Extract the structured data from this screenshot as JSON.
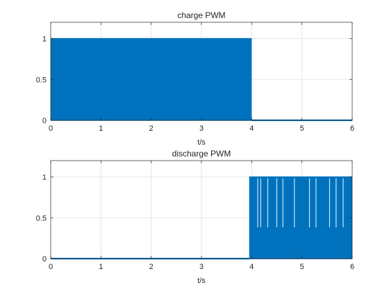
{
  "chart_data": [
    {
      "type": "line",
      "title": "charge PWM",
      "xlabel": "t/s",
      "ylabel": "",
      "xlim": [
        0,
        6
      ],
      "ylim": [
        0,
        1.2
      ],
      "x_ticks": [
        "0",
        "1",
        "2",
        "3",
        "4",
        "5",
        "6"
      ],
      "y_ticks": [
        "0",
        "0.5",
        "1"
      ],
      "grid": true,
      "series": [
        {
          "color": "#0072BD",
          "segments": [
            {
              "kind": "pwm_band",
              "x_start": 0,
              "x_end": 4,
              "low": 0,
              "high": 1
            },
            {
              "kind": "constant",
              "x_start": 4,
              "x_end": 6,
              "value": 0
            }
          ]
        }
      ]
    },
    {
      "type": "line",
      "title": "discharge PWM",
      "xlabel": "t/s",
      "ylabel": "",
      "xlim": [
        0,
        6
      ],
      "ylim": [
        0,
        1.2
      ],
      "x_ticks": [
        "0",
        "1",
        "2",
        "3",
        "4",
        "5",
        "6"
      ],
      "y_ticks": [
        "0",
        "0.5",
        "1"
      ],
      "grid": true,
      "series": [
        {
          "color": "#0072BD",
          "segments": [
            {
              "kind": "constant",
              "x_start": 0,
              "x_end": 3.95,
              "value": 0
            },
            {
              "kind": "pwm_band",
              "x_start": 3.95,
              "x_end": 6,
              "low": 0,
              "high": 1
            }
          ],
          "gaps_at_high": [
            4.12,
            4.18,
            4.32,
            4.5,
            4.62,
            4.85,
            5.15,
            5.28,
            5.55,
            5.68,
            5.82
          ]
        }
      ]
    }
  ]
}
